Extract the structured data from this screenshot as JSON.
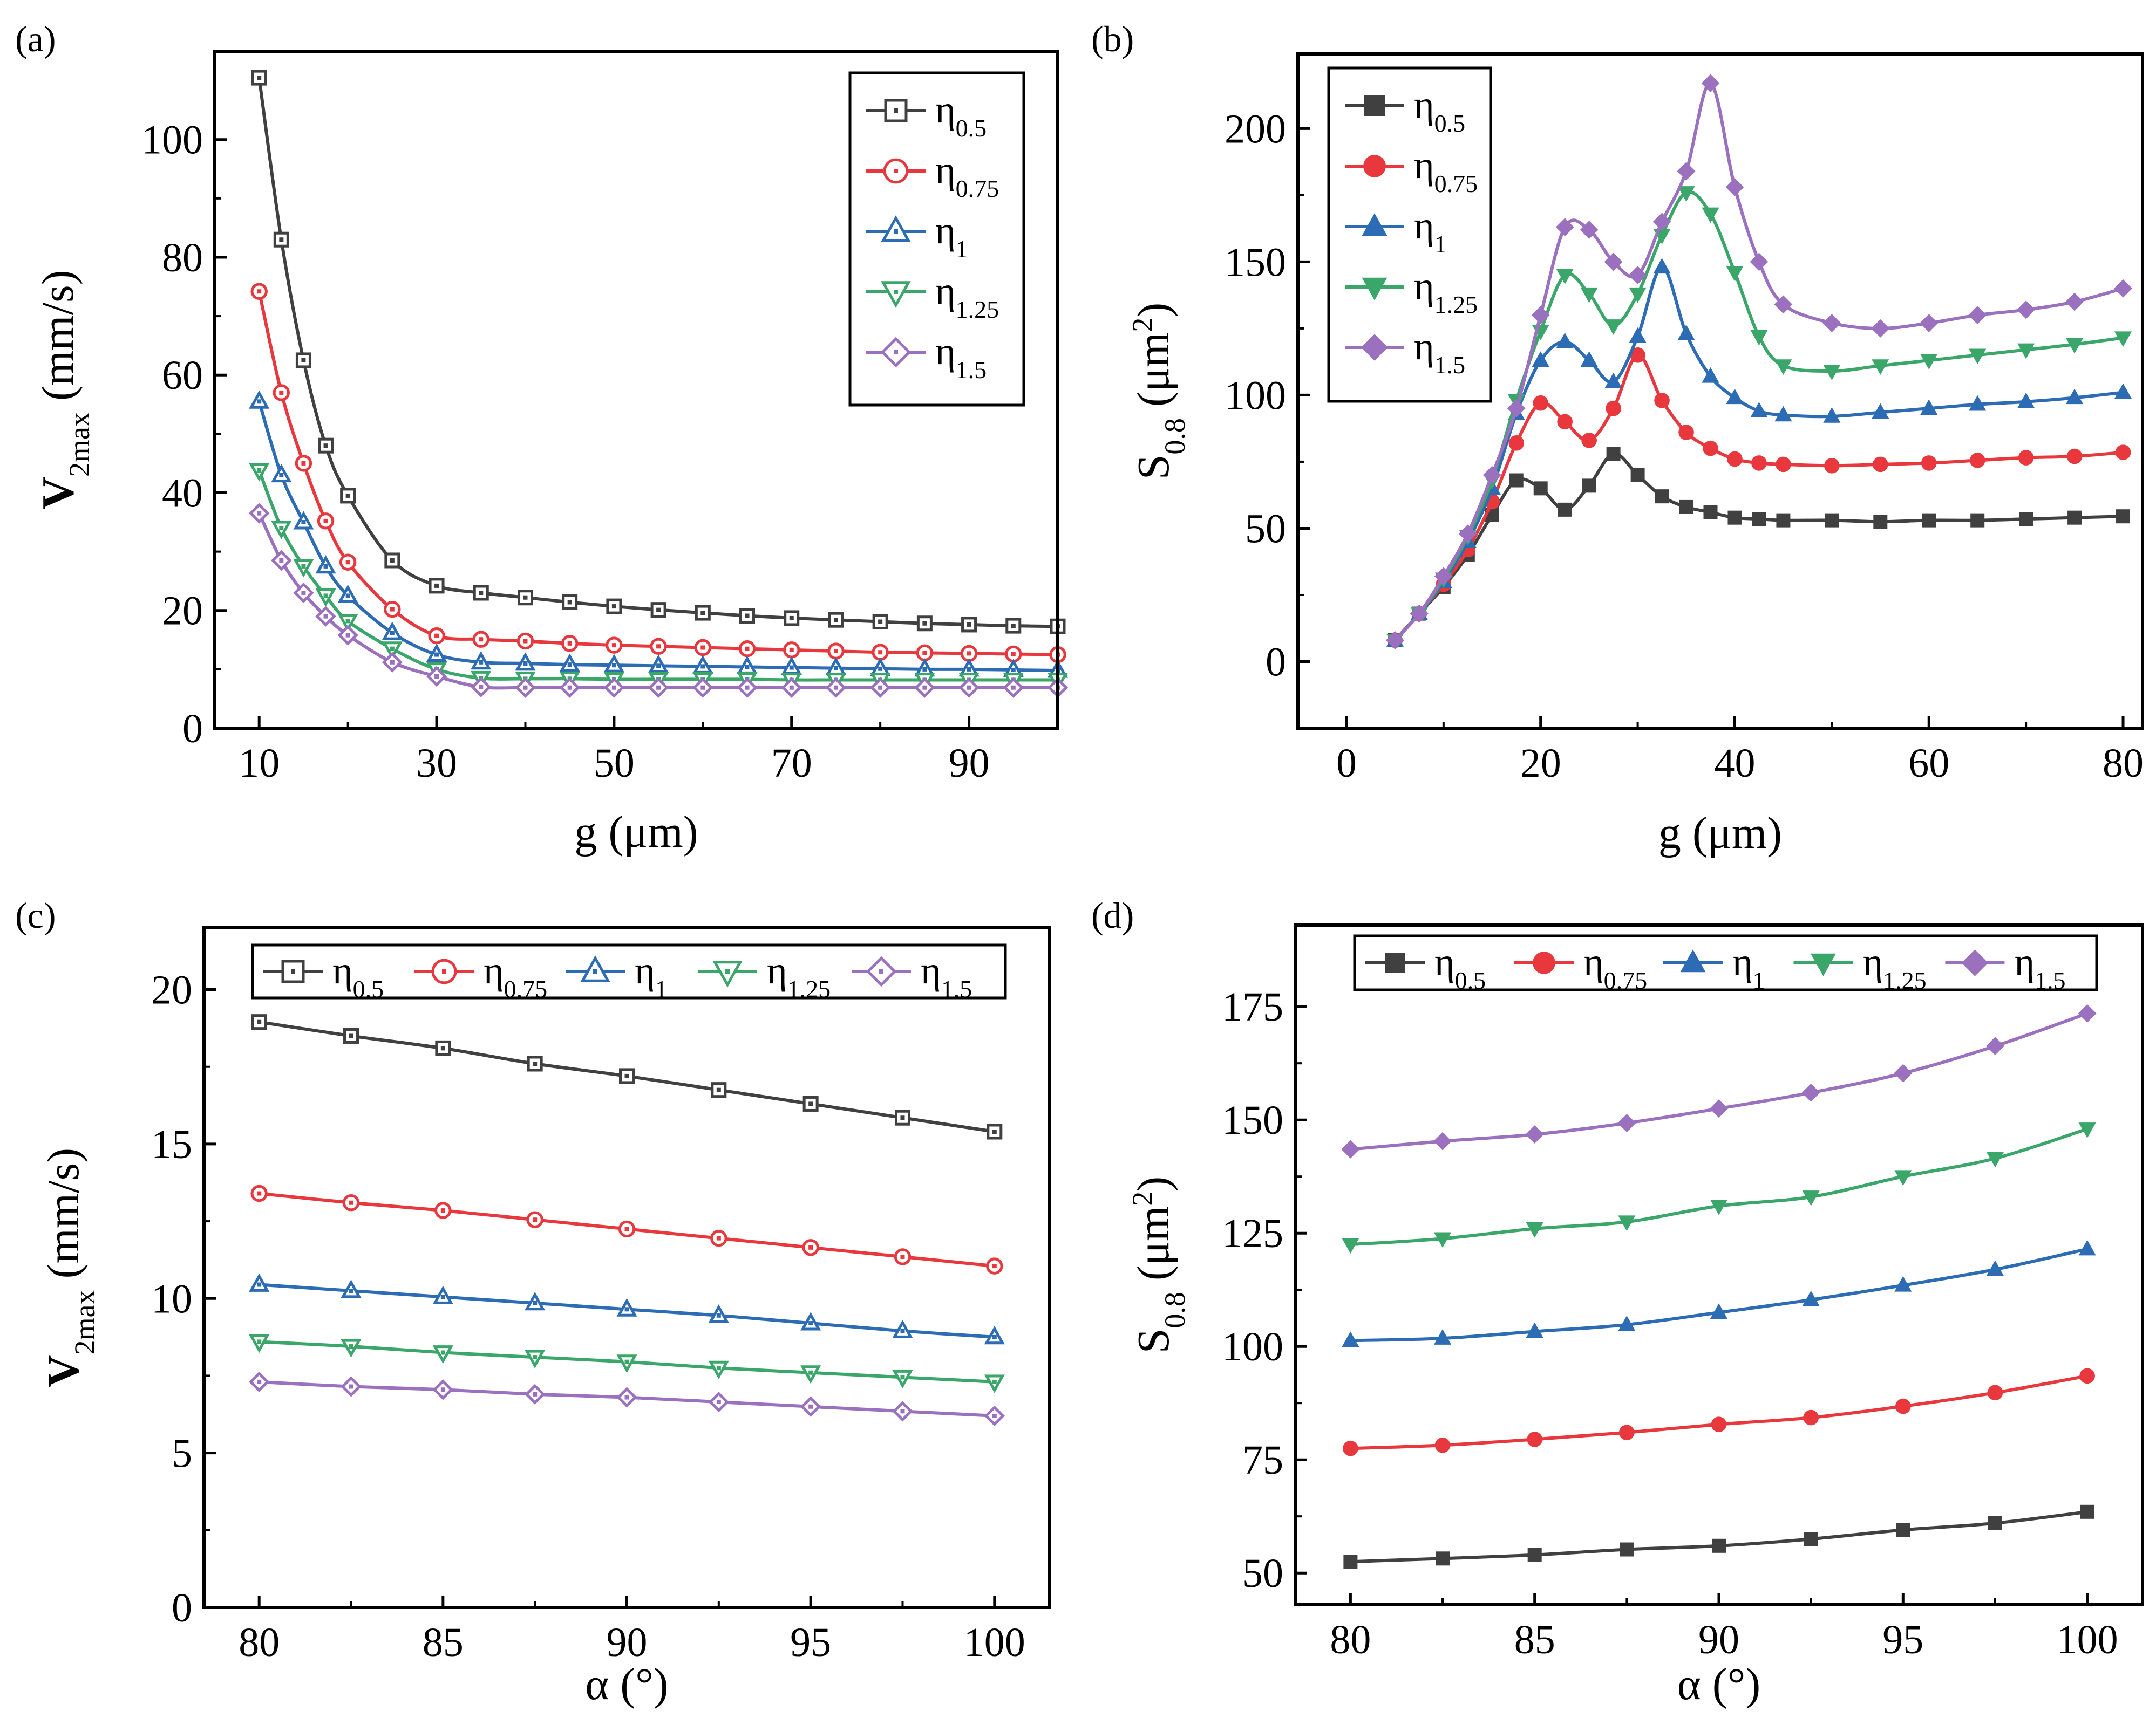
{
  "colors": {
    "eta_0.5": "#404040",
    "eta_0.75": "#e8383d",
    "eta_1": "#2b6cb5",
    "eta_1.25": "#3aa669",
    "eta_1.5": "#9a70bf"
  },
  "legend_labels": [
    {
      "base": "η",
      "sub": "0.5"
    },
    {
      "base": "η",
      "sub": "0.75"
    },
    {
      "base": "η",
      "sub": "1"
    },
    {
      "base": "η",
      "sub": "1.25"
    },
    {
      "base": "η",
      "sub": "1.5"
    }
  ],
  "chart_data": [
    {
      "panel": "(a)",
      "type": "line",
      "xlabel": "g (μm)",
      "ylabel": {
        "base": "V",
        "sub": "2max",
        "unit": " (mm/s)"
      },
      "xlim": [
        5,
        100
      ],
      "ylim": [
        0,
        115
      ],
      "xticks": [
        10,
        30,
        50,
        70,
        90
      ],
      "yticks": [
        0,
        20,
        40,
        60,
        80,
        100
      ],
      "marker_style": "hollow",
      "legend": "top-right",
      "x": [
        10,
        12.5,
        15,
        17.5,
        20,
        25,
        30,
        35,
        40,
        45,
        50,
        55,
        60,
        65,
        70,
        75,
        80,
        85,
        90,
        95,
        100
      ],
      "series": [
        {
          "name": "η0.5",
          "values": [
            110.5,
            83,
            62.5,
            48,
            39.5,
            28.5,
            24.2,
            23,
            22.2,
            21.4,
            20.7,
            20.1,
            19.6,
            19.1,
            18.7,
            18.4,
            18.1,
            17.8,
            17.6,
            17.4,
            17.3
          ]
        },
        {
          "name": "η0.75",
          "values": [
            74.2,
            57,
            45,
            35.2,
            28.2,
            20.2,
            15.7,
            15.1,
            14.8,
            14.4,
            14.1,
            13.9,
            13.7,
            13.5,
            13.3,
            13.1,
            12.9,
            12.8,
            12.7,
            12.6,
            12.5
          ]
        },
        {
          "name": "η1",
          "values": [
            55.5,
            43,
            35,
            27.5,
            22.5,
            16.2,
            12.5,
            11.2,
            11,
            10.8,
            10.7,
            10.6,
            10.5,
            10.4,
            10.3,
            10.2,
            10.1,
            10,
            10,
            9.9,
            9.8
          ]
        },
        {
          "name": "η1.25",
          "values": [
            43.8,
            34,
            27.5,
            22.5,
            18.2,
            13.5,
            10,
            8.5,
            8.4,
            8.4,
            8.3,
            8.3,
            8.3,
            8.3,
            8.2,
            8.2,
            8.2,
            8.2,
            8.2,
            8.2,
            8.2
          ]
        },
        {
          "name": "η1.5",
          "values": [
            36.5,
            28.5,
            23,
            19,
            15.8,
            11.2,
            8.8,
            7,
            6.9,
            6.9,
            6.9,
            6.9,
            6.9,
            6.9,
            6.9,
            6.9,
            6.9,
            6.9,
            6.9,
            6.9,
            6.9
          ]
        }
      ]
    },
    {
      "panel": "(b)",
      "type": "line",
      "xlabel": "g (μm)",
      "ylabel": {
        "base": "S",
        "sub": "0.8",
        "unit": " (μm",
        "sup": "2",
        "close": ")"
      },
      "xlim": [
        -5,
        82
      ],
      "ylim": [
        -25,
        228
      ],
      "xticks": [
        0,
        20,
        40,
        60,
        80
      ],
      "yticks": [
        0,
        50,
        100,
        150,
        200
      ],
      "marker_style": "filled",
      "legend": "top-left",
      "series": [
        {
          "name": "η0.5",
          "x": [
            5,
            7.5,
            10,
            12.5,
            15,
            17.5,
            20,
            22.5,
            25,
            27.5,
            30,
            32.5,
            35,
            37.5,
            40,
            42.5,
            45,
            50,
            55,
            60,
            65,
            70,
            75,
            80
          ],
          "values": [
            8,
            18,
            28,
            40,
            55,
            68,
            65,
            57,
            66,
            78,
            70,
            62,
            58,
            56,
            54,
            53.5,
            53,
            53,
            52.5,
            53,
            53,
            53.5,
            54,
            54.5
          ]
        },
        {
          "name": "η0.75",
          "x": [
            5,
            7.5,
            10,
            12.5,
            15,
            17.5,
            20,
            22.5,
            25,
            27.5,
            30,
            32.5,
            35,
            37.5,
            40,
            42.5,
            45,
            50,
            55,
            60,
            65,
            70,
            75,
            80
          ],
          "values": [
            8,
            18,
            29,
            42,
            60,
            82,
            97,
            90,
            83,
            95,
            115,
            98,
            86,
            80,
            76,
            74.5,
            74,
            73.5,
            74,
            74.5,
            75.5,
            76.5,
            77,
            78.5
          ]
        },
        {
          "name": "η1",
          "x": [
            5,
            7.5,
            10,
            12.5,
            15,
            17.5,
            20,
            22.5,
            25,
            27.5,
            30,
            32.5,
            35,
            37.5,
            40,
            42.5,
            45,
            50,
            55,
            60,
            65,
            70,
            75,
            80
          ],
          "values": [
            8,
            18,
            30,
            45,
            65,
            93,
            113,
            120,
            113,
            105,
            122,
            148,
            123,
            107,
            99,
            94,
            92.5,
            92,
            93.5,
            95,
            96.5,
            97.5,
            99,
            101
          ]
        },
        {
          "name": "η1.25",
          "x": [
            5,
            7.5,
            10,
            12.5,
            15,
            17.5,
            20,
            22.5,
            25,
            27.5,
            30,
            32.5,
            35,
            37.5,
            40,
            42.5,
            45,
            50,
            55,
            60,
            65,
            70,
            75,
            80
          ],
          "values": [
            8,
            18,
            31,
            47,
            68,
            98,
            124,
            145,
            138,
            126,
            138,
            160,
            176,
            168,
            146,
            122,
            111,
            109,
            111,
            113,
            115,
            117,
            119,
            121.5
          ]
        },
        {
          "name": "η1.5",
          "x": [
            5,
            7.5,
            10,
            12.5,
            15,
            17.5,
            20,
            22.5,
            25,
            27.5,
            30,
            32.5,
            35,
            37.5,
            40,
            42.5,
            45,
            50,
            55,
            60,
            65,
            70,
            75,
            80
          ],
          "values": [
            8,
            18,
            32,
            48,
            70,
            95,
            130,
            163,
            162,
            150,
            145,
            165,
            184,
            217,
            178,
            150,
            134,
            127,
            125,
            127,
            130,
            132,
            135,
            140
          ]
        }
      ]
    },
    {
      "panel": "(c)",
      "type": "line",
      "xlabel": "α (°)",
      "ylabel": {
        "base": "V",
        "sub": "2max",
        "unit": " (mm/s)"
      },
      "xlim": [
        78.5,
        101.5
      ],
      "ylim": [
        0,
        22
      ],
      "xticks": [
        80,
        85,
        90,
        95,
        100
      ],
      "yticks": [
        0,
        5,
        10,
        15,
        20
      ],
      "marker_style": "hollow",
      "legend": "top (horizontal)",
      "x": [
        80,
        82.5,
        85,
        87.5,
        90,
        92.5,
        95,
        97.5,
        100
      ],
      "series": [
        {
          "name": "η0.5",
          "values": [
            18.95,
            18.5,
            18.1,
            17.6,
            17.2,
            16.75,
            16.3,
            15.85,
            15.4
          ]
        },
        {
          "name": "η0.75",
          "values": [
            13.4,
            13.1,
            12.85,
            12.55,
            12.25,
            11.95,
            11.65,
            11.35,
            11.05
          ]
        },
        {
          "name": "η1",
          "values": [
            10.45,
            10.25,
            10.05,
            9.85,
            9.65,
            9.45,
            9.2,
            8.95,
            8.75
          ]
        },
        {
          "name": "η1.25",
          "values": [
            8.6,
            8.45,
            8.25,
            8.1,
            7.95,
            7.75,
            7.6,
            7.45,
            7.3
          ]
        },
        {
          "name": "η1.5",
          "values": [
            7.3,
            7.15,
            7.05,
            6.9,
            6.8,
            6.65,
            6.5,
            6.35,
            6.2
          ]
        }
      ]
    },
    {
      "panel": "(d)",
      "type": "line",
      "xlabel": "α (°)",
      "ylabel": {
        "base": "S",
        "sub": "0.8",
        "unit": " (μm",
        "sup": "2",
        "close": ")"
      },
      "xlim": [
        78.5,
        101.5
      ],
      "ylim": [
        43,
        193
      ],
      "xticks": [
        80,
        85,
        90,
        95,
        100
      ],
      "yticks": [
        50,
        75,
        100,
        125,
        150,
        175
      ],
      "marker_style": "filled",
      "legend": "top (horizontal)",
      "x": [
        80,
        82.5,
        85,
        87.5,
        90,
        92.5,
        95,
        97.5,
        100
      ],
      "series": [
        {
          "name": "η0.5",
          "values": [
            52.5,
            53.2,
            54,
            55.2,
            56,
            57.5,
            59.5,
            61,
            63.5
          ]
        },
        {
          "name": "η0.75",
          "values": [
            77.5,
            78.2,
            79.5,
            81,
            82.8,
            84.3,
            86.8,
            89.8,
            93.5
          ]
        },
        {
          "name": "η1",
          "values": [
            101.3,
            101.8,
            103.3,
            104.8,
            107.5,
            110.3,
            113.5,
            117,
            121.5
          ]
        },
        {
          "name": "η1.25",
          "values": [
            122.5,
            123.8,
            126,
            127.5,
            131,
            133,
            137.5,
            141.5,
            148
          ]
        },
        {
          "name": "η1.5",
          "values": [
            143.5,
            145.3,
            146.8,
            149.3,
            152.5,
            156,
            160.3,
            166.3,
            173.5
          ]
        }
      ]
    }
  ]
}
